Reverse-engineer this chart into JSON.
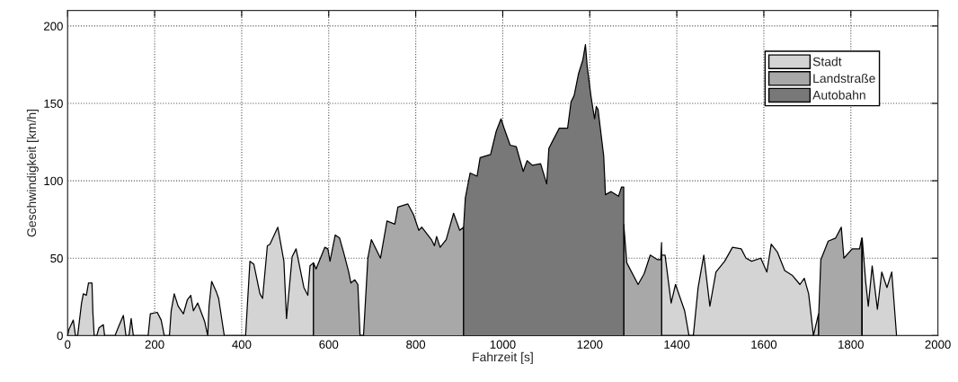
{
  "chart_data": {
    "type": "area",
    "xlabel": "Fahrzeit [s]",
    "ylabel": "Geschwindigkeit [km/h]",
    "xlim": [
      0,
      2000
    ],
    "xticks": [
      0,
      200,
      400,
      600,
      800,
      1000,
      1200,
      1400,
      1600,
      1800,
      2000
    ],
    "ylim": [
      0,
      210
    ],
    "yticks": [
      0,
      50,
      100,
      150,
      200
    ],
    "grid": true,
    "line_style": "solid",
    "legend": "top right",
    "series": [
      {
        "name": "Stadt",
        "color": "#d4d4d4",
        "x": [
          0,
          3,
          13,
          18,
          23,
          32,
          36,
          43,
          48,
          56,
          58,
          61,
          67,
          72,
          82,
          85,
          109,
          116,
          128,
          134,
          141,
          146,
          151,
          185,
          190,
          206,
          215,
          222,
          234,
          238,
          245,
          254,
          266,
          275,
          283,
          289,
          299,
          315,
          322,
          325,
          331,
          342,
          347,
          360,
          401,
          409,
          419,
          428,
          442,
          448,
          459,
          465,
          483,
          497,
          503,
          516,
          525,
          543,
          552,
          557,
          565,
          565,
          1365,
          1365,
          1373,
          1387,
          1397,
          1418,
          1428,
          1438,
          1449,
          1462,
          1476,
          1490,
          1510,
          1528,
          1548,
          1559,
          1572,
          1593,
          1607,
          1617,
          1631,
          1648,
          1665,
          1683,
          1693,
          1703,
          1714,
          1724,
          1726,
          1726,
          1826,
          1826,
          1834,
          1840,
          1849,
          1861,
          1871,
          1883,
          1894,
          1905
        ],
        "values": [
          0,
          4,
          10,
          0,
          0,
          21,
          27,
          26,
          34,
          34,
          15,
          0,
          0,
          5,
          7,
          0,
          0,
          5,
          13,
          0,
          0,
          11,
          0,
          0,
          14,
          15,
          10,
          0,
          0,
          16,
          27,
          19,
          14,
          23,
          26,
          16,
          21,
          9,
          0,
          19,
          35,
          28,
          24,
          0,
          0,
          0,
          48,
          46,
          27,
          24,
          58,
          59,
          70,
          48,
          11,
          51,
          56,
          31,
          26,
          45,
          47,
          0,
          0,
          52,
          52,
          21,
          33,
          16,
          0,
          0,
          31,
          52,
          19,
          41,
          48,
          57,
          56,
          50,
          48,
          50,
          41,
          59,
          54,
          42,
          39,
          33,
          37,
          27,
          0,
          12,
          14,
          0,
          0,
          63,
          35,
          19,
          45,
          17,
          41,
          31,
          41,
          0
        ]
      },
      {
        "name": "Landstraße",
        "color": "#a8a8a8",
        "x": [
          565,
          565,
          571,
          591,
          598,
          603,
          615,
          625,
          634,
          646,
          651,
          660,
          667,
          672,
          680,
          690,
          698,
          719,
          734,
          752,
          759,
          782,
          795,
          807,
          814,
          836,
          843,
          848,
          856,
          870,
          887,
          901,
          910,
          910,
          1278,
          1278,
          1285,
          1311,
          1325,
          1339,
          1356,
          1363,
          1365,
          1365,
          1726,
          1726,
          1731,
          1748,
          1765,
          1778,
          1784,
          1803,
          1820,
          1825,
          1825
        ],
        "values": [
          0,
          47,
          43,
          57,
          56,
          48,
          65,
          63,
          54,
          41,
          34,
          36,
          33,
          0,
          0,
          50,
          62,
          50,
          74,
          72,
          83,
          85,
          78,
          68,
          70,
          62,
          58,
          64,
          57,
          62,
          79,
          68,
          70,
          0,
          0,
          72,
          47,
          33,
          40,
          52,
          49,
          49,
          60,
          0,
          0,
          12,
          49,
          61,
          63,
          70,
          50,
          56,
          56,
          63,
          0
        ]
      },
      {
        "name": "Autobahn",
        "color": "#787878",
        "x": [
          910,
          910,
          914,
          925,
          941,
          948,
          972,
          985,
          996,
          1003,
          1017,
          1031,
          1047,
          1056,
          1068,
          1087,
          1101,
          1106,
          1117,
          1130,
          1149,
          1157,
          1164,
          1174,
          1184,
          1190,
          1194,
          1203,
          1211,
          1215,
          1219,
          1232,
          1236,
          1249,
          1266,
          1273,
          1278,
          1278
        ],
        "values": [
          0,
          70,
          89,
          105,
          103,
          115,
          117,
          132,
          140,
          134,
          123,
          122,
          106,
          113,
          110,
          111,
          98,
          121,
          127,
          134,
          134,
          151,
          155,
          169,
          178,
          188,
          174,
          154,
          140,
          148,
          146,
          116,
          91,
          93,
          90,
          96,
          96,
          0
        ]
      }
    ]
  }
}
